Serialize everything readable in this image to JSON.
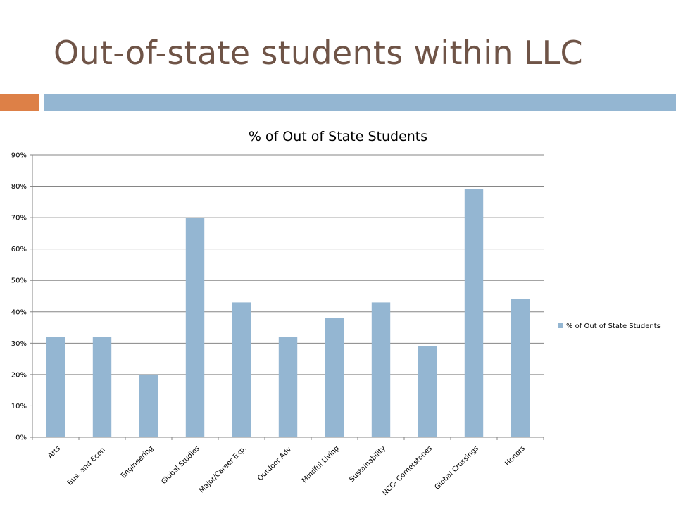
{
  "slide": {
    "title": "Out-of-state students within LLC"
  },
  "colors": {
    "title": "#6f5447",
    "accent_orange": "#dd8047",
    "accent_blue": "#94b6d2",
    "bar": "#94b6d2",
    "grid": "#868686"
  },
  "chart_data": {
    "type": "bar",
    "title": "% of Out of State Students",
    "xlabel": "",
    "ylabel": "",
    "categories": [
      "Arts",
      "Bus. and Econ.",
      "Engineering",
      "Global Studies",
      "Major/Career Exp.",
      "Outdoor Adv.",
      "Mindful Living",
      "Sustainability",
      "NCC- Cornerstones",
      "Global Crossings",
      "Honors"
    ],
    "series": [
      {
        "name": "% of Out of State Students",
        "values": [
          32,
          32,
          20,
          70,
          43,
          32,
          38,
          43,
          29,
          79,
          44
        ]
      }
    ],
    "ylim": [
      0,
      90
    ],
    "yticks": [
      "0%",
      "10%",
      "20%",
      "30%",
      "40%",
      "50%",
      "60%",
      "70%",
      "80%",
      "90%"
    ],
    "grid": true,
    "legend_position": "right"
  }
}
